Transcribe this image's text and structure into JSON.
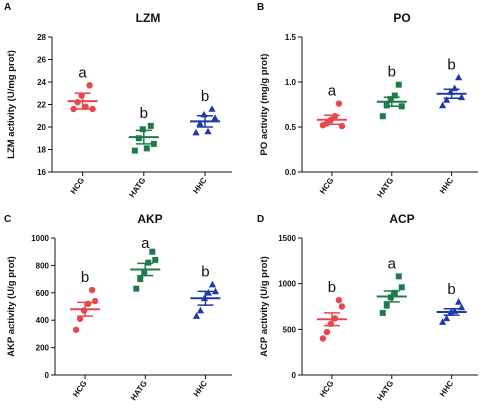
{
  "chart_data": [
    {
      "panel": "A",
      "type": "scatter",
      "title": "LZM",
      "ylabel": "LZM activity (U/mg prot)",
      "ylim": [
        16,
        28
      ],
      "yticks": [
        "16",
        "18",
        "20",
        "22",
        "24",
        "26",
        "28"
      ],
      "categories": [
        "HCG",
        "HATG",
        "HHC"
      ],
      "colors": [
        "#e8474c",
        "#1f7a4a",
        "#1f3aa8"
      ],
      "significance": [
        "a",
        "b",
        "b"
      ],
      "series": [
        {
          "values": [
            21.6,
            22.2,
            22.8,
            21.8,
            23.7,
            21.6
          ],
          "mean": 22.3,
          "error": 0.7
        },
        {
          "values": [
            17.9,
            19.0,
            19.8,
            18.1,
            20.1,
            18.5
          ],
          "mean": 19.1,
          "error": 0.6
        },
        {
          "values": [
            19.5,
            20.3,
            21.1,
            19.6,
            21.6,
            20.8
          ],
          "mean": 20.5,
          "error": 0.5
        }
      ]
    },
    {
      "panel": "B",
      "type": "scatter",
      "title": "PO",
      "ylabel": "PO activity (mg/g prot)",
      "ylim": [
        0,
        1.5
      ],
      "yticks": [
        "0.0",
        "0.5",
        "1.0",
        "1.5"
      ],
      "categories": [
        "HCG",
        "HATG",
        "HHC"
      ],
      "colors": [
        "#e8474c",
        "#1f7a4a",
        "#1f3aa8"
      ],
      "significance": [
        "a",
        "b",
        "b"
      ],
      "series": [
        {
          "values": [
            0.52,
            0.54,
            0.58,
            0.62,
            0.76,
            0.51
          ],
          "mean": 0.58,
          "error": 0.05
        },
        {
          "values": [
            0.62,
            0.74,
            0.81,
            0.85,
            0.97,
            0.73
          ],
          "mean": 0.78,
          "error": 0.05
        },
        {
          "values": [
            0.74,
            0.8,
            0.89,
            0.93,
            1.05,
            0.83
          ],
          "mean": 0.87,
          "error": 0.05
        }
      ]
    },
    {
      "panel": "C",
      "type": "scatter",
      "title": "AKP",
      "ylabel": "AKP activity (U/g prot)",
      "ylim": [
        0,
        1000
      ],
      "yticks": [
        "0",
        "200",
        "400",
        "600",
        "800",
        "1000"
      ],
      "categories": [
        "HCG",
        "HATG",
        "HHC"
      ],
      "colors": [
        "#e8474c",
        "#1f7a4a",
        "#1f3aa8"
      ],
      "significance": [
        "b",
        "a",
        "b"
      ],
      "series": [
        {
          "values": [
            330,
            410,
            470,
            520,
            620,
            540
          ],
          "mean": 480,
          "error": 50
        },
        {
          "values": [
            630,
            700,
            750,
            820,
            900,
            840
          ],
          "mean": 770,
          "error": 45
        },
        {
          "values": [
            430,
            470,
            560,
            600,
            660,
            610
          ],
          "mean": 560,
          "error": 50
        }
      ]
    },
    {
      "panel": "D",
      "type": "scatter",
      "title": "ACP",
      "ylabel": "ACP activity (U/g prot)",
      "ylim": [
        0,
        1500
      ],
      "yticks": [
        "0",
        "500",
        "1000",
        "1500"
      ],
      "categories": [
        "HCG",
        "HATG",
        "HHC"
      ],
      "colors": [
        "#e8474c",
        "#1f7a4a",
        "#1f3aa8"
      ],
      "significance": [
        "b",
        "a",
        "b"
      ],
      "series": [
        {
          "values": [
            400,
            470,
            560,
            620,
            820,
            750
          ],
          "mean": 610,
          "error": 70
        },
        {
          "values": [
            680,
            760,
            850,
            900,
            1080,
            960
          ],
          "mean": 860,
          "error": 60
        },
        {
          "values": [
            580,
            620,
            680,
            700,
            800,
            740
          ],
          "mean": 690,
          "error": 35
        }
      ]
    }
  ]
}
